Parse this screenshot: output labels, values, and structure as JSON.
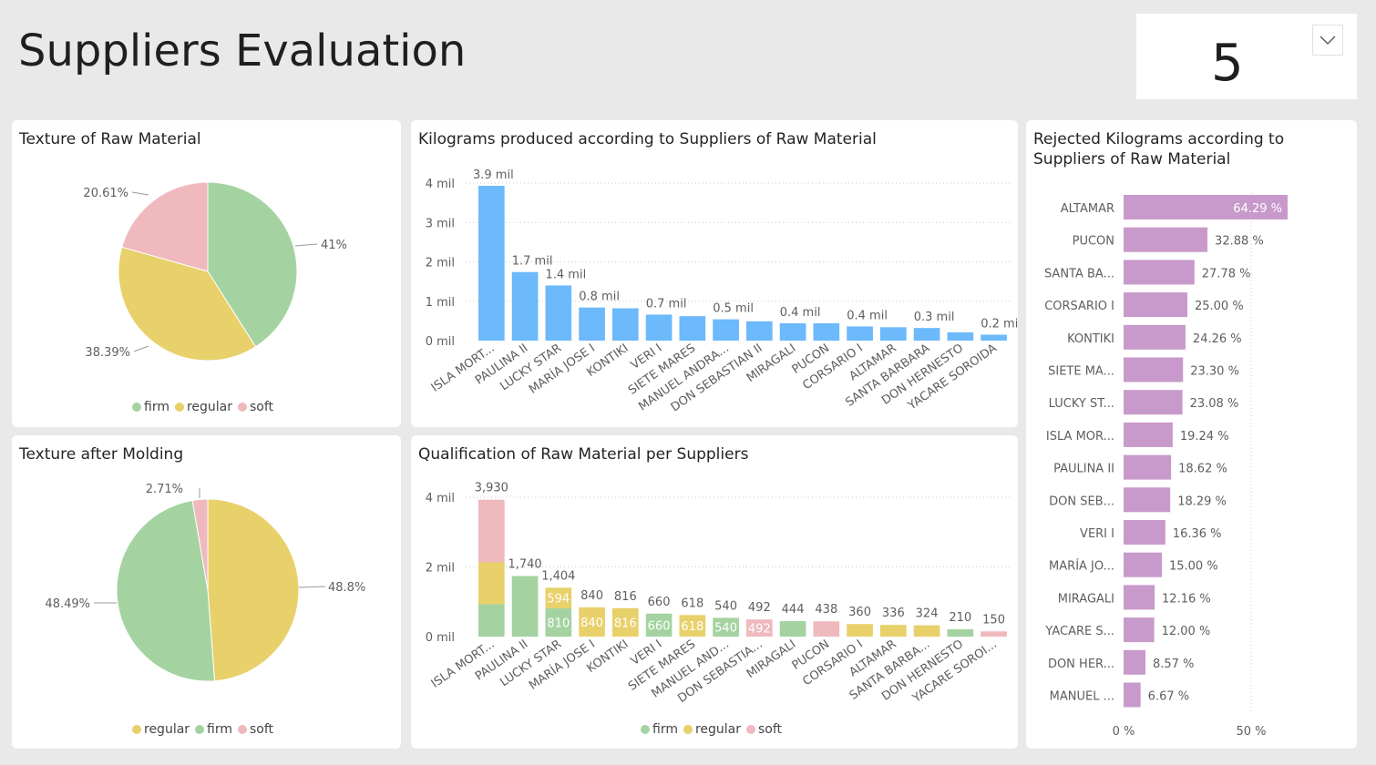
{
  "page": {
    "title": "Suppliers Evaluation"
  },
  "slicer": {
    "value": "5"
  },
  "colors": {
    "firm": "#a4d3a1",
    "regular": "#e8d06a",
    "soft": "#efb9bd",
    "bar_blue": "#6cb9fb",
    "bar_purple": "#c899cb"
  },
  "chart_data": [
    {
      "id": "texture_raw",
      "type": "pie",
      "title": "Texture of Raw Material",
      "slices": [
        {
          "label": "firm",
          "value": 41.0,
          "display": "41%"
        },
        {
          "label": "regular",
          "value": 38.39,
          "display": "38.39%"
        },
        {
          "label": "soft",
          "value": 20.61,
          "display": "20.61%"
        }
      ],
      "legend": [
        "firm",
        "regular",
        "soft"
      ],
      "legend_position": "bottom"
    },
    {
      "id": "texture_molding",
      "type": "pie",
      "title": "Texture after Molding",
      "slices": [
        {
          "label": "regular",
          "value": 48.8,
          "display": "48.8%"
        },
        {
          "label": "firm",
          "value": 48.49,
          "display": "48.49%"
        },
        {
          "label": "soft",
          "value": 2.71,
          "display": "2.71%"
        }
      ],
      "legend": [
        "regular",
        "firm",
        "soft"
      ],
      "legend_position": "bottom"
    },
    {
      "id": "kg_produced",
      "type": "bar",
      "title": "Kilograms produced according to Suppliers of Raw Material",
      "categories": [
        "ISLA MORT...",
        "PAULINA II",
        "LUCKY STAR",
        "MARÍA JOSE I",
        "KONTIKI",
        "VERI I",
        "SIETE MARES",
        "MANUEL ANDRA...",
        "DON SEBASTIAN II",
        "MIRAGALI",
        "PUCON",
        "CORSARIO I",
        "ALTAMAR",
        "SANTA BARBARA",
        "DON HERNESTO",
        "YACARE SOROIDA"
      ],
      "values": [
        3.93,
        1.74,
        1.4,
        0.84,
        0.82,
        0.66,
        0.62,
        0.54,
        0.49,
        0.44,
        0.44,
        0.36,
        0.34,
        0.32,
        0.21,
        0.15
      ],
      "data_labels": [
        "3.9 mil",
        "1.7 mil",
        "1.4 mil",
        "0.8 mil",
        "",
        "0.7 mil",
        "",
        "0.5 mil",
        "",
        "0.4 mil",
        "",
        "0.4 mil",
        "",
        "0.3 mil",
        "",
        "0.2 mil"
      ],
      "yticks": [
        "0 mil",
        "1 mil",
        "2 mil",
        "3 mil",
        "4 mil"
      ],
      "ylim": [
        0,
        4
      ]
    },
    {
      "id": "qualification",
      "type": "bar",
      "stacked": true,
      "title": "Qualification of Raw Material per Suppliers",
      "categories": [
        "ISLA MORT...",
        "PAULINA II",
        "LUCKY STAR",
        "MARÍA JOSE I",
        "KONTIKI",
        "VERI I",
        "SIETE MARES",
        "MANUEL AND...",
        "DON SEBASTIA...",
        "MIRAGALI",
        "PUCON",
        "CORSARIO I",
        "ALTAMAR",
        "SANTA BARBA...",
        "DON HERNESTO",
        "YACARE SOROI..."
      ],
      "series": [
        {
          "name": "firm",
          "values": [
            930,
            1740,
            810,
            0,
            0,
            660,
            0,
            540,
            0,
            444,
            0,
            0,
            0,
            0,
            210,
            0
          ]
        },
        {
          "name": "regular",
          "values": [
            1200,
            0,
            594,
            840,
            816,
            0,
            618,
            0,
            0,
            0,
            0,
            360,
            336,
            324,
            0,
            0
          ]
        },
        {
          "name": "soft",
          "values": [
            1800,
            0,
            0,
            0,
            0,
            0,
            0,
            0,
            492,
            0,
            438,
            0,
            0,
            0,
            0,
            150
          ]
        }
      ],
      "totals": [
        "3,930",
        "1,740",
        "1,404",
        "840",
        "816",
        "660",
        "618",
        "540",
        "492",
        "444",
        "438",
        "360",
        "336",
        "324",
        "210",
        "150"
      ],
      "segment_labels": [
        [],
        [],
        [
          {
            "series": "firm",
            "text": "810"
          },
          {
            "series": "regular",
            "text": "594"
          }
        ],
        [
          {
            "series": "regular",
            "text": "840"
          }
        ],
        [
          {
            "series": "regular",
            "text": "816"
          }
        ],
        [
          {
            "series": "firm",
            "text": "660"
          }
        ],
        [
          {
            "series": "regular",
            "text": "618"
          }
        ],
        [
          {
            "series": "firm",
            "text": "540"
          }
        ],
        [
          {
            "series": "soft",
            "text": "492"
          }
        ],
        [],
        [],
        [],
        [],
        [],
        [],
        []
      ],
      "yticks": [
        "0 mil",
        "2 mil",
        "4 mil"
      ],
      "ylim": [
        0,
        4000
      ],
      "legend": [
        "firm",
        "regular",
        "soft"
      ],
      "legend_position": "bottom"
    },
    {
      "id": "rejected_kg",
      "type": "bar",
      "orientation": "horizontal",
      "title": "Rejected Kilograms according to Suppliers of Raw Material",
      "categories": [
        "ALTAMAR",
        "PUCON",
        "SANTA BA...",
        "CORSARIO I",
        "KONTIKI",
        "SIETE MA...",
        "LUCKY ST...",
        "ISLA MOR...",
        "PAULINA II",
        "DON SEB...",
        "VERI I",
        "MARÍA JO...",
        "MIRAGALI",
        "YACARE S...",
        "DON HER...",
        "MANUEL ..."
      ],
      "values": [
        64.29,
        32.88,
        27.78,
        25.0,
        24.26,
        23.3,
        23.08,
        19.24,
        18.62,
        18.29,
        16.36,
        15.0,
        12.16,
        12.0,
        8.57,
        6.67
      ],
      "data_labels": [
        "64.29 %",
        "32.88 %",
        "27.78 %",
        "25.00 %",
        "24.26 %",
        "23.30 %",
        "23.08 %",
        "19.24 %",
        "18.62 %",
        "18.29 %",
        "16.36 %",
        "15.00 %",
        "12.16 %",
        "12.00 %",
        "8.57 %",
        "6.67 %"
      ],
      "xticks": [
        "0 %",
        "50 %"
      ],
      "xlim": [
        0,
        64.29
      ]
    }
  ]
}
